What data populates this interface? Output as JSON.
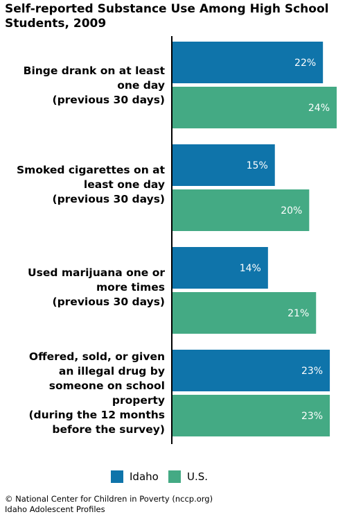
{
  "chart_data": {
    "type": "bar",
    "orientation": "horizontal",
    "title": "Self-reported Substance Use Among High School Students, 2009",
    "categories": [
      "Binge drank on at least\none day\n(previous 30 days)",
      "Smoked cigarettes on at\nleast one day\n(previous 30 days)",
      "Used marijuana one or\nmore times\n(previous 30 days)",
      "Offered, sold, or given\nan illegal drug by\nsomeone on school\nproperty\n(during the 12 months\nbefore the survey)"
    ],
    "series": [
      {
        "name": "Idaho",
        "values": [
          22,
          15,
          14,
          23
        ],
        "labels": [
          "22%",
          "15%",
          "14%",
          "23%"
        ],
        "color": "#0f74aa"
      },
      {
        "name": "U.S.",
        "values": [
          24,
          20,
          21,
          23
        ],
        "labels": [
          "24%",
          "20%",
          "21%",
          "23%"
        ],
        "color": "#44aa84"
      }
    ],
    "xlim": [
      0,
      24
    ],
    "grid": false,
    "legend_position": "bottom"
  },
  "footer": {
    "line1": "© National Center for Children in Poverty (nccp.org)",
    "line2": "Idaho Adolescent Profiles"
  }
}
